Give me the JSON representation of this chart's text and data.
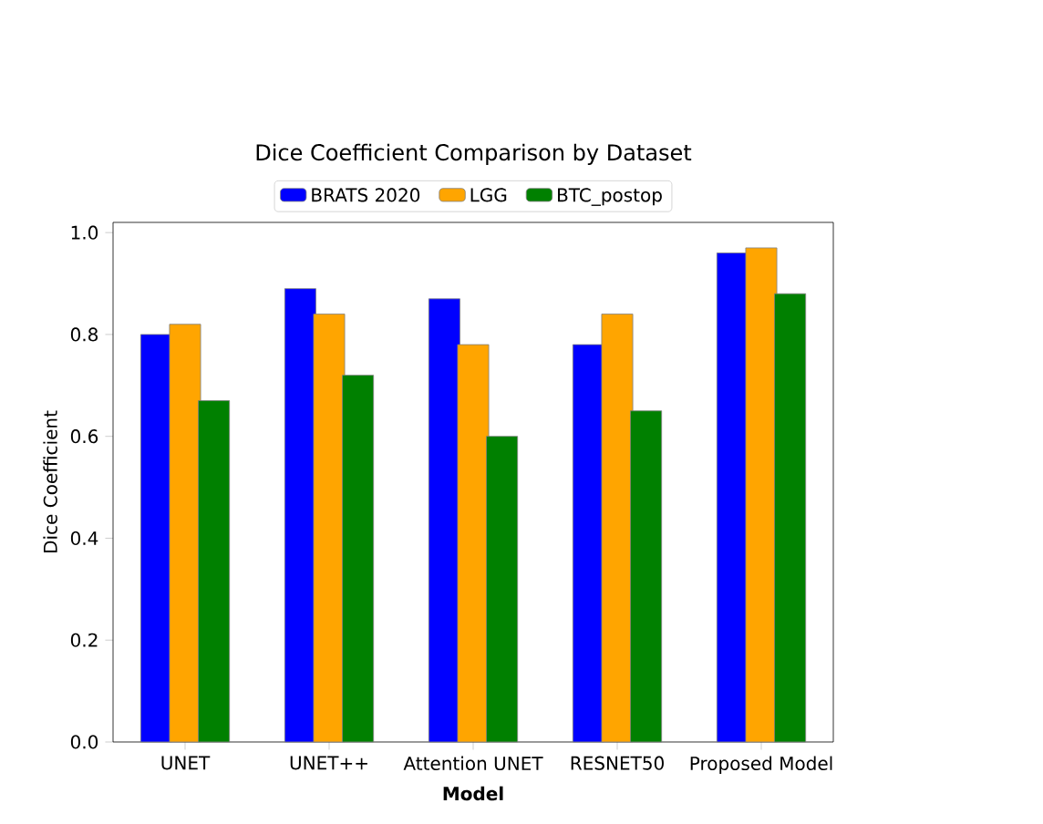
{
  "chart_data": {
    "type": "bar",
    "title": "Dice Coefficient Comparison by Dataset",
    "xlabel": "Model",
    "ylabel": "Dice Coefficient",
    "categories": [
      "UNET",
      "UNET++",
      "Attention UNET",
      "RESNET50",
      "Proposed Model"
    ],
    "series": [
      {
        "name": "BRATS 2020",
        "color": "#0000ff",
        "values": [
          0.8,
          0.89,
          0.87,
          0.78,
          0.96
        ]
      },
      {
        "name": "LGG",
        "color": "#ffa500",
        "values": [
          0.82,
          0.84,
          0.78,
          0.84,
          0.97
        ]
      },
      {
        "name": "BTC_postop",
        "color": "#008000",
        "values": [
          0.67,
          0.72,
          0.6,
          0.65,
          0.88
        ]
      }
    ],
    "ylim": [
      0,
      1.02
    ],
    "yticks": [
      {
        "value": 0,
        "label": "0.0"
      },
      {
        "value": 0.2,
        "label": "0.2"
      },
      {
        "value": 0.4,
        "label": "0.4"
      },
      {
        "value": 0.6,
        "label": "0.6"
      },
      {
        "value": 0.8,
        "label": "0.8"
      },
      {
        "value": 1.0,
        "label": "1.0"
      }
    ],
    "legend": "top"
  }
}
